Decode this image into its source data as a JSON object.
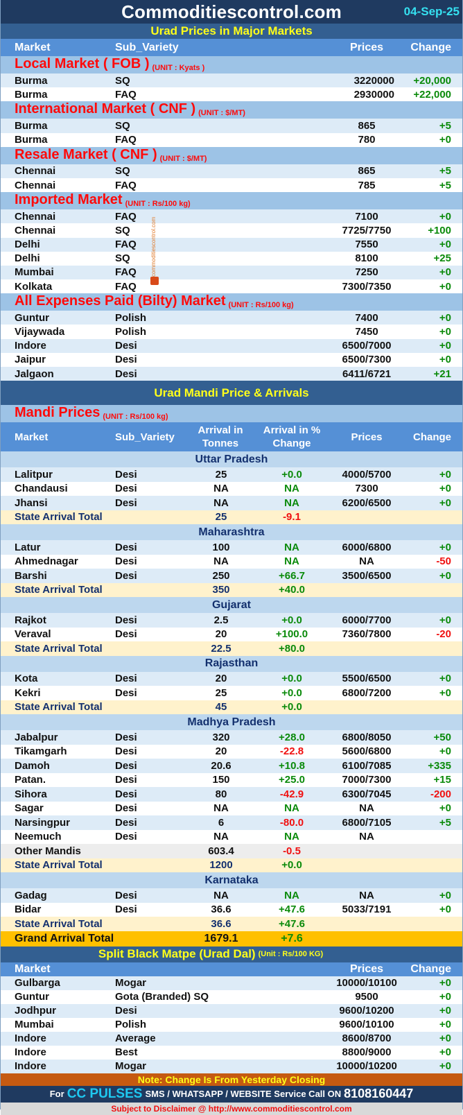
{
  "header": {
    "title": "Commoditiescontrol.com",
    "date": "04-Sep-25"
  },
  "top": {
    "subtitle": "Urad Prices in Major Markets",
    "columns": [
      "Market",
      "Sub_Variety",
      "Prices",
      "Change"
    ],
    "sections": [
      {
        "title": "Local Market ( FOB )",
        "unit": "(UNIT : Kyats )",
        "rows": [
          [
            "Burma",
            "SQ",
            "3220000",
            "+20,000"
          ],
          [
            "Burma",
            "FAQ",
            "2930000",
            "+22,000"
          ]
        ]
      },
      {
        "title": "International Market ( CNF )",
        "unit": "(UNIT : $/MT)",
        "rows": [
          [
            "Burma",
            "SQ",
            "865",
            "+5"
          ],
          [
            "Burma",
            "FAQ",
            "780",
            "+0"
          ]
        ]
      },
      {
        "title": "Resale Market  ( CNF )",
        "unit": "(UNIT : $/MT)",
        "rows": [
          [
            "Chennai",
            "SQ",
            "865",
            "+5"
          ],
          [
            "Chennai",
            "FAQ",
            "785",
            "+5"
          ]
        ]
      },
      {
        "title": "Imported Market",
        "unit": "(UNIT : Rs/100 kg)",
        "rows": [
          [
            "Chennai",
            "FAQ",
            "7100",
            "+0"
          ],
          [
            "Chennai",
            "SQ",
            "7725/7750",
            "+100"
          ],
          [
            "Delhi",
            "FAQ",
            "7550",
            "+0"
          ],
          [
            "Delhi",
            "SQ",
            "8100",
            "+25"
          ],
          [
            "Mumbai",
            "FAQ",
            "7250",
            "+0"
          ],
          [
            "Kolkata",
            "FAQ",
            "7300/7350",
            "+0"
          ]
        ]
      },
      {
        "title": "All Expenses Paid (Bilty) Market",
        "unit": "(UNIT : Rs/100 kg)",
        "rows": [
          [
            "Guntur",
            "Polish",
            "7400",
            "+0"
          ],
          [
            "Vijaywada",
            "Polish",
            "7450",
            "+0"
          ],
          [
            "Indore",
            "Desi",
            "6500/7000",
            "+0"
          ],
          [
            "Jaipur",
            "Desi",
            "6500/7300",
            "+0"
          ],
          [
            "Jalgaon",
            "Desi",
            "6411/6721",
            "+21"
          ]
        ]
      }
    ]
  },
  "watermark": "commoditiescontrol.com",
  "mandi": {
    "band": "Urad Mandi Price & Arrivals",
    "section_title": "Mandi Prices",
    "section_unit": "(UNIT : Rs/100 kg)",
    "columns": [
      "Market",
      "Sub_Variety",
      "Arrival in Tonnes",
      "Arrival  in % Change",
      "Prices",
      "Change"
    ],
    "states": [
      {
        "name": "Uttar Pradesh",
        "rows": [
          [
            "Lalitpur",
            "Desi",
            "25",
            "+0.0",
            "4000/5700",
            "+0"
          ],
          [
            "Chandausi",
            "Desi",
            "NA",
            "NA",
            "7300",
            "+0"
          ],
          [
            "Jhansi",
            "Desi",
            "NA",
            "NA",
            "6200/6500",
            "+0"
          ]
        ],
        "total": [
          "State Arrival Total",
          "25",
          "-9.1"
        ]
      },
      {
        "name": "Maharashtra",
        "rows": [
          [
            "Latur",
            "Desi",
            "100",
            "NA",
            "6000/6800",
            "+0"
          ],
          [
            "Ahmednagar",
            "Desi",
            "NA",
            "NA",
            "NA",
            "-50"
          ],
          [
            "Barshi",
            "Desi",
            "250",
            "+66.7",
            "3500/6500",
            "+0"
          ]
        ],
        "total": [
          "State Arrival Total",
          "350",
          "+40.0"
        ]
      },
      {
        "name": "Gujarat",
        "rows": [
          [
            "Rajkot",
            "Desi",
            "2.5",
            "+0.0",
            "6000/7700",
            "+0"
          ],
          [
            "Veraval",
            "Desi",
            "20",
            "+100.0",
            "7360/7800",
            "-20"
          ]
        ],
        "total": [
          "State Arrival Total",
          "22.5",
          "+80.0"
        ]
      },
      {
        "name": "Rajasthan",
        "rows": [
          [
            "Kota",
            "Desi",
            "20",
            "+0.0",
            "5500/6500",
            "+0"
          ],
          [
            "Kekri",
            "Desi",
            "25",
            "+0.0",
            "6800/7200",
            "+0"
          ]
        ],
        "total": [
          "State Arrival Total",
          "45",
          "+0.0"
        ]
      },
      {
        "name": "Madhya Pradesh",
        "rows": [
          [
            "Jabalpur",
            "Desi",
            "320",
            "+28.0",
            "6800/8050",
            "+50"
          ],
          [
            "Tikamgarh",
            "Desi",
            "20",
            "-22.8",
            "5600/6800",
            "+0"
          ],
          [
            "Damoh",
            "Desi",
            "20.6",
            "+10.8",
            "6100/7085",
            "+335"
          ],
          [
            "Patan.",
            "Desi",
            "150",
            "+25.0",
            "7000/7300",
            "+15"
          ],
          [
            "Sihora",
            "Desi",
            "80",
            "-42.9",
            "6300/7045",
            "-200"
          ],
          [
            "Sagar",
            "Desi",
            "NA",
            "NA",
            "NA",
            "+0"
          ],
          [
            "Narsingpur",
            "Desi",
            "6",
            "-80.0",
            "6800/7105",
            "+5"
          ],
          [
            "Neemuch",
            "Desi",
            "NA",
            "NA",
            "NA",
            ""
          ]
        ],
        "other": [
          "Other Mandis",
          "603.4",
          "-0.5"
        ],
        "total": [
          "State Arrival Total",
          "1200",
          "+0.0"
        ]
      },
      {
        "name": "Karnataka",
        "rows": [
          [
            "Gadag",
            "Desi",
            "NA",
            "NA",
            "NA",
            "+0"
          ],
          [
            "Bidar",
            "Desi",
            "36.6",
            "+47.6",
            "5033/7191",
            "+0"
          ]
        ],
        "total": [
          "State Arrival Total",
          "36.6",
          "+47.6"
        ]
      }
    ],
    "grand": [
      "Grand Arrival Total",
      "1679.1",
      "+7.6"
    ]
  },
  "dal": {
    "title": "Split Black Matpe (Urad Dal)",
    "unit": "(Unit : Rs/100 KG)",
    "columns": [
      "Market",
      "Prices",
      "Change"
    ],
    "rows": [
      [
        "Gulbarga",
        "Mogar",
        "10000/10100",
        "+0"
      ],
      [
        "Guntur",
        "Gota (Branded) SQ",
        "9500",
        "+0"
      ],
      [
        "Jodhpur",
        "Desi",
        "9600/10200",
        "+0"
      ],
      [
        "Mumbai",
        "Polish",
        "9600/10100",
        "+0"
      ],
      [
        "Indore",
        "Average",
        "8600/8700",
        "+0"
      ],
      [
        "Indore",
        "Best",
        "8800/9000",
        "+0"
      ],
      [
        "Indore",
        "Mogar",
        "10000/10200",
        "+0"
      ]
    ]
  },
  "footer": {
    "note": "Note: Change Is From Yesterday Closing",
    "cc_for": "For",
    "cc_highlight": "CC PULSES",
    "cc_text": "SMS / WHATSAPP / WEBSITE Service Call  ON",
    "cc_phone": "8108160447",
    "disclaimer": "Subject to Disclaimer @  http://www.commoditiescontrol.com"
  },
  "colors": {
    "positive": "#0a8a0a",
    "negative": "#f01010",
    "header_bg": "#1f3a60",
    "column_header_bg": "#5590d6",
    "grand_total_bg": "#ffc000"
  }
}
